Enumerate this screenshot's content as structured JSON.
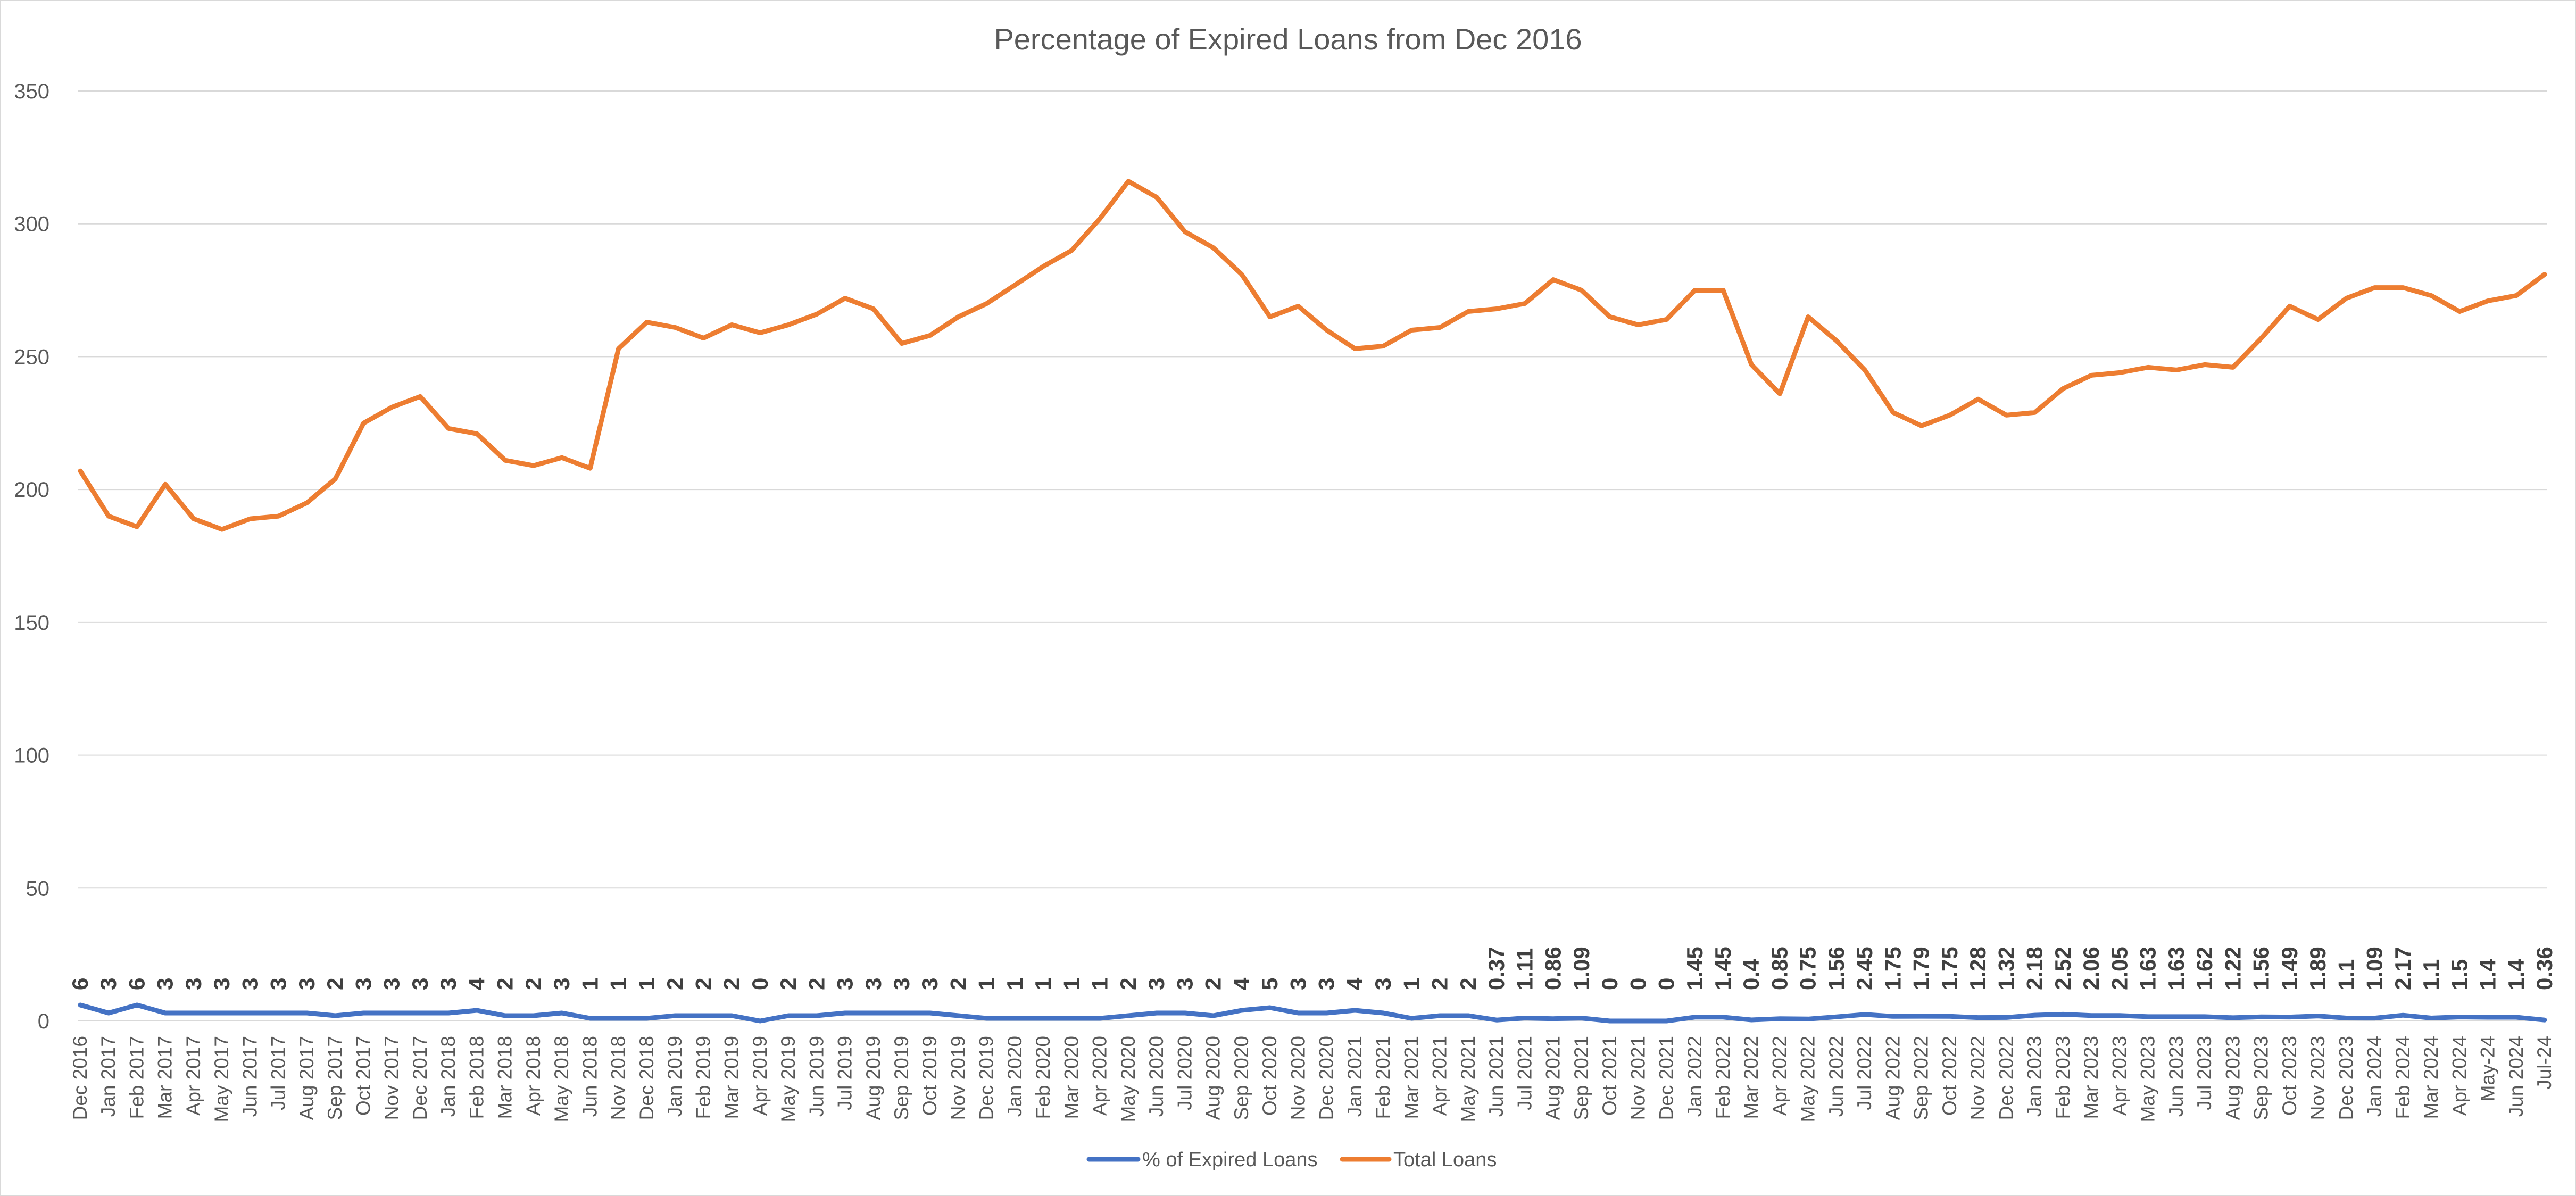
{
  "chart_data": {
    "type": "line",
    "title": "Percentage of Expired Loans from Dec 2016",
    "xlabel": "",
    "ylabel": "",
    "ylim": [
      0,
      350
    ],
    "yticks": [
      "0",
      "50",
      "100",
      "150",
      "200",
      "250",
      "300",
      "350"
    ],
    "grid": true,
    "legend_position": "bottom",
    "categories": [
      "Dec 2016",
      "Jan 2017",
      "Feb 2017",
      "Mar 2017",
      "Apr 2017",
      "May 2017",
      "Jun 2017",
      "Jul 2017",
      "Aug 2017",
      "Sep 2017",
      "Oct 2017",
      "Nov 2017",
      "Dec 2017",
      "Jan 2018",
      "Feb 2018",
      "Mar 2018",
      "Apr 2018",
      "May 2018",
      "Jun 2018",
      "Nov 2018",
      "Dec 2018",
      "Jan 2019",
      "Feb 2019",
      "Mar 2019",
      "Apr 2019",
      "May 2019",
      "Jun 2019",
      "Jul 2019",
      "Aug 2019",
      "Sep 2019",
      "Oct 2019",
      "Nov 2019",
      "Dec 2019",
      "Jan 2020",
      "Feb 2020",
      "Mar 2020",
      "Apr 2020",
      "May 2020",
      "Jun 2020",
      "Jul 2020",
      "Aug 2020",
      "Sep 2020",
      "Oct 2020",
      "Nov 2020",
      "Dec 2020",
      "Jan 2021",
      "Feb 2021",
      "Mar 2021",
      "Apr 2021",
      "May 2021",
      "Jun 2021",
      "Jul 2021",
      "Aug 2021",
      "Sep 2021",
      "Oct 2021",
      "Nov 2021",
      "Dec 2021",
      "Jan 2022",
      "Feb 2022",
      "Mar 2022",
      "Apr 2022",
      "May 2022",
      "Jun 2022",
      "Jul 2022",
      "Aug 2022",
      "Sep 2022",
      "Oct 2022",
      "Nov 2022",
      "Dec 2022",
      "Jan 2023",
      "Feb 2023",
      "Mar 2023",
      "Apr 2023",
      "May 2023",
      "Jun 2023",
      "Jul 2023",
      "Aug 2023",
      "Sep 2023",
      "Oct 2023",
      "Nov 2023",
      "Dec 2023",
      "Jan 2024",
      "Feb 2024",
      "Mar 2024",
      "Apr 2024",
      "May-24",
      "Jun 2024",
      "Jul-24"
    ],
    "series": [
      {
        "name": "% of Expired Loans",
        "color": "#4472C4",
        "values": [
          6,
          3,
          6,
          3,
          3,
          3,
          3,
          3,
          3,
          2,
          3,
          3,
          3,
          3,
          4,
          2,
          2,
          3,
          1,
          1,
          1,
          2,
          2,
          2,
          0,
          2,
          2,
          3,
          3,
          3,
          3,
          2,
          1,
          1,
          1,
          1,
          1,
          2,
          3,
          3,
          2,
          4,
          5,
          3,
          3,
          4,
          3,
          1,
          2,
          2,
          0.37,
          1.11,
          0.86,
          1.09,
          0,
          0,
          0,
          1.45,
          1.45,
          0.4,
          0.85,
          0.75,
          1.56,
          2.45,
          1.75,
          1.79,
          1.75,
          1.28,
          1.32,
          2.18,
          2.52,
          2.06,
          2.05,
          1.63,
          1.63,
          1.62,
          1.22,
          1.56,
          1.49,
          1.89,
          1.1,
          1.09,
          2.17,
          1.1,
          1.5,
          1.4,
          1.4,
          0.36
        ],
        "labels": [
          "6",
          "3",
          "6",
          "3",
          "3",
          "3",
          "3",
          "3",
          "3",
          "2",
          "3",
          "3",
          "3",
          "3",
          "4",
          "2",
          "2",
          "3",
          "1",
          "1",
          "1",
          "2",
          "2",
          "2",
          "0",
          "2",
          "2",
          "3",
          "3",
          "3",
          "3",
          "2",
          "1",
          "1",
          "1",
          "1",
          "1",
          "2",
          "3",
          "3",
          "2",
          "4",
          "5",
          "3",
          "3",
          "4",
          "3",
          "1",
          "2",
          "2",
          "0.37",
          "1.11",
          "0.86",
          "1.09",
          "0",
          "0",
          "0",
          "1.45",
          "1.45",
          "0.4",
          "0.85",
          "0.75",
          "1.56",
          "2.45",
          "1.75",
          "1.79",
          "1.75",
          "1.28",
          "1.32",
          "2.18",
          "2.52",
          "2.06",
          "2.05",
          "1.63",
          "1.63",
          "1.62",
          "1.22",
          "1.56",
          "1.49",
          "1.89",
          "1.1",
          "1.09",
          "2.17",
          "1.1",
          "1.5",
          "1.4",
          "1.4",
          "0.36"
        ]
      },
      {
        "name": "Total Loans",
        "color": "#ED7D31",
        "values": [
          207,
          190,
          186,
          202,
          189,
          185,
          189,
          190,
          195,
          204,
          225,
          231,
          235,
          223,
          221,
          211,
          209,
          212,
          208,
          253,
          263,
          261,
          257,
          262,
          259,
          262,
          266,
          272,
          268,
          255,
          258,
          265,
          270,
          277,
          284,
          290,
          302,
          316,
          310,
          297,
          291,
          281,
          265,
          269,
          260,
          253,
          254,
          260,
          261,
          267,
          268,
          270,
          279,
          275,
          265,
          262,
          264,
          275,
          275,
          247,
          236,
          265,
          256,
          245,
          229,
          224,
          228,
          234,
          228,
          229,
          238,
          243,
          244,
          246,
          245,
          247,
          246,
          257,
          269,
          264,
          272,
          276,
          276,
          273,
          267,
          271,
          273,
          281
        ]
      }
    ]
  }
}
